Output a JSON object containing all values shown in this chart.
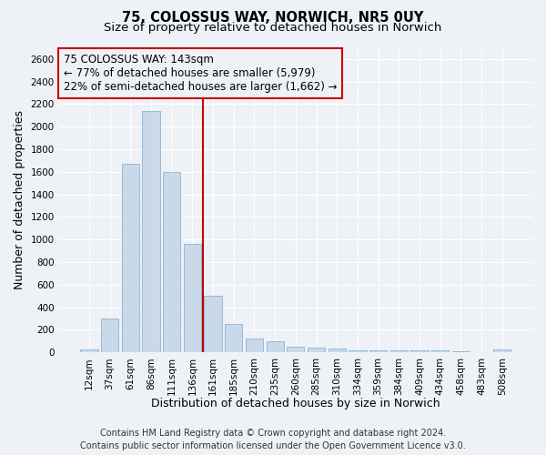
{
  "title_line1": "75, COLOSSUS WAY, NORWICH, NR5 0UY",
  "title_line2": "Size of property relative to detached houses in Norwich",
  "xlabel": "Distribution of detached houses by size in Norwich",
  "ylabel": "Number of detached properties",
  "bar_color": "#c9d9ea",
  "bar_edge_color": "#7aaac8",
  "categories": [
    "12sqm",
    "37sqm",
    "61sqm",
    "86sqm",
    "111sqm",
    "136sqm",
    "161sqm",
    "185sqm",
    "210sqm",
    "235sqm",
    "260sqm",
    "285sqm",
    "310sqm",
    "334sqm",
    "359sqm",
    "384sqm",
    "409sqm",
    "434sqm",
    "458sqm",
    "483sqm",
    "508sqm"
  ],
  "values": [
    25,
    300,
    1670,
    2140,
    1595,
    960,
    500,
    250,
    120,
    100,
    50,
    40,
    35,
    20,
    20,
    20,
    15,
    20,
    10,
    5,
    25
  ],
  "ylim": [
    0,
    2700
  ],
  "yticks": [
    0,
    200,
    400,
    600,
    800,
    1000,
    1200,
    1400,
    1600,
    1800,
    2000,
    2200,
    2400,
    2600
  ],
  "vline_x_index": 5.5,
  "vline_color": "#cc0000",
  "annotation_line1": "75 COLOSSUS WAY: 143sqm",
  "annotation_line2": "← 77% of detached houses are smaller (5,979)",
  "annotation_line3": "22% of semi-detached houses are larger (1,662) →",
  "annotation_box_color": "#cc0000",
  "footer_line1": "Contains HM Land Registry data © Crown copyright and database right 2024.",
  "footer_line2": "Contains public sector information licensed under the Open Government Licence v3.0.",
  "background_color": "#eef2f7",
  "grid_color": "#ffffff",
  "title_fontsize": 10.5,
  "subtitle_fontsize": 9.5,
  "axis_label_fontsize": 9,
  "tick_fontsize": 7.5,
  "annotation_fontsize": 8.5,
  "footer_fontsize": 7
}
